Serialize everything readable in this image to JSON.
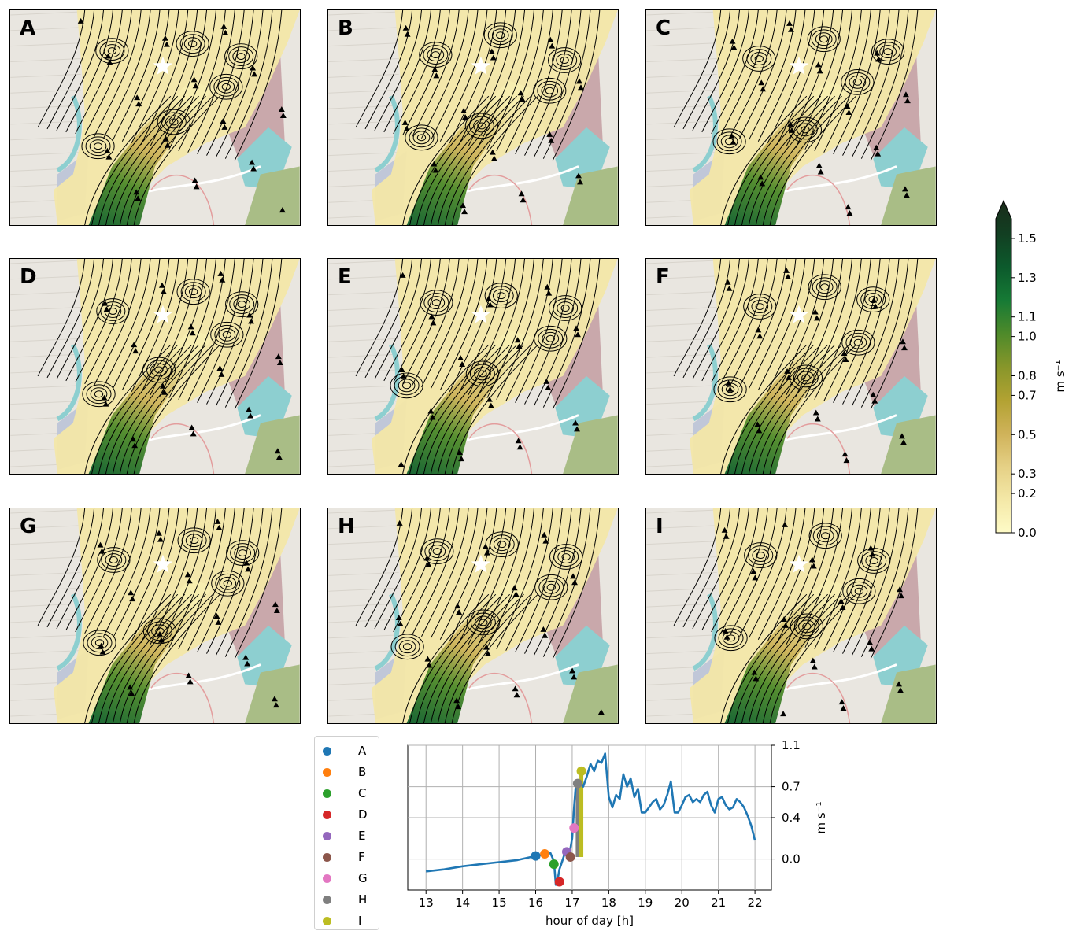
{
  "panels": [
    {
      "label": "A",
      "time": 16.0
    },
    {
      "label": "B",
      "time": 16.25
    },
    {
      "label": "C",
      "time": 16.5
    },
    {
      "label": "D",
      "time": 16.6
    },
    {
      "label": "E",
      "time": 16.8
    },
    {
      "label": "F",
      "time": 17.0
    },
    {
      "label": "G",
      "time": 17.05
    },
    {
      "label": "H",
      "time": 17.15
    },
    {
      "label": "I",
      "time": 17.25
    }
  ],
  "colorbar": {
    "label": "m s⁻¹",
    "ticks": [
      "0.0",
      "0.2",
      "0.3",
      "0.5",
      "0.7",
      "0.8",
      "1.0",
      "1.1",
      "1.3",
      "1.5"
    ],
    "range": [
      0,
      1.6
    ],
    "extend": "max",
    "colors": [
      "#fefbc7",
      "#f4e8a7",
      "#e5d085",
      "#cfb259",
      "#b2a232",
      "#87962a",
      "#4e8a2a",
      "#167a35",
      "#0c5a2c",
      "#123f22",
      "#1a2b1a"
    ]
  },
  "legend": {
    "entries": [
      {
        "label": "A",
        "color": "#1f77b4"
      },
      {
        "label": "B",
        "color": "#ff7f0e"
      },
      {
        "label": "C",
        "color": "#2ca02c"
      },
      {
        "label": "D",
        "color": "#d62728"
      },
      {
        "label": "E",
        "color": "#9467bd"
      },
      {
        "label": "F",
        "color": "#8c564b"
      },
      {
        "label": "G",
        "color": "#e377c2"
      },
      {
        "label": "H",
        "color": "#7f7f7f"
      },
      {
        "label": "I",
        "color": "#bcbd22"
      }
    ]
  },
  "chart_data": {
    "type": "line",
    "xlabel": "hour of day [h]",
    "ylabel": "m s⁻¹",
    "xlim": [
      12.5,
      22.45
    ],
    "ylim": [
      -0.3,
      1.1
    ],
    "xticks": [
      "13",
      "14",
      "15",
      "16",
      "17",
      "18",
      "19",
      "20",
      "21",
      "22"
    ],
    "yticks": [
      "1.1",
      "0.7",
      "0.4",
      "0.0"
    ],
    "ytick_values": [
      1.1,
      0.7,
      0.4,
      0.0
    ],
    "grid": true,
    "series": [
      {
        "color": "#1f77b4",
        "x": [
          13.0,
          13.5,
          14.0,
          14.5,
          15.0,
          15.5,
          16.0,
          16.2,
          16.4,
          16.5,
          16.55,
          16.6,
          16.65,
          16.7,
          16.8,
          16.9,
          17.0,
          17.05,
          17.1,
          17.15,
          17.2,
          17.3,
          17.4,
          17.5,
          17.6,
          17.7,
          17.8,
          17.9,
          18.0,
          18.1,
          18.2,
          18.3,
          18.4,
          18.5,
          18.6,
          18.7,
          18.8,
          18.9,
          19.0,
          19.1,
          19.2,
          19.3,
          19.4,
          19.5,
          19.6,
          19.7,
          19.8,
          19.9,
          20.0,
          20.1,
          20.2,
          20.3,
          20.4,
          20.5,
          20.6,
          20.7,
          20.8,
          20.9,
          21.0,
          21.1,
          21.2,
          21.3,
          21.4,
          21.5,
          21.6,
          21.7,
          21.8,
          21.9,
          22.0
        ],
        "y": [
          -0.12,
          -0.1,
          -0.07,
          -0.05,
          -0.03,
          -0.01,
          0.03,
          0.04,
          0.06,
          -0.02,
          -0.25,
          -0.2,
          -0.1,
          -0.05,
          0.06,
          0.0,
          0.2,
          0.5,
          0.72,
          0.76,
          0.75,
          0.7,
          0.8,
          0.92,
          0.85,
          0.95,
          0.93,
          1.02,
          0.6,
          0.5,
          0.62,
          0.58,
          0.82,
          0.7,
          0.78,
          0.6,
          0.68,
          0.45,
          0.45,
          0.5,
          0.55,
          0.58,
          0.48,
          0.52,
          0.62,
          0.75,
          0.45,
          0.45,
          0.52,
          0.6,
          0.62,
          0.55,
          0.58,
          0.55,
          0.62,
          0.65,
          0.52,
          0.45,
          0.58,
          0.6,
          0.52,
          0.48,
          0.5,
          0.58,
          0.55,
          0.5,
          0.42,
          0.32,
          0.18
        ]
      }
    ],
    "vertical_bars": [
      {
        "x": 17.15,
        "y0": 0.02,
        "y1": 0.72,
        "color": "#7f7f7f"
      },
      {
        "x": 17.25,
        "y0": 0.02,
        "y1": 0.85,
        "color": "#bcbd22"
      }
    ],
    "markers": [
      {
        "label": "A",
        "x": 16.0,
        "y": 0.03
      },
      {
        "label": "B",
        "x": 16.25,
        "y": 0.05
      },
      {
        "label": "C",
        "x": 16.5,
        "y": -0.05
      },
      {
        "label": "D",
        "x": 16.65,
        "y": -0.22
      },
      {
        "label": "E",
        "x": 16.85,
        "y": 0.07
      },
      {
        "label": "F",
        "x": 16.95,
        "y": 0.02
      },
      {
        "label": "G",
        "x": 17.05,
        "y": 0.3
      },
      {
        "label": "H",
        "x": 17.15,
        "y": 0.73
      },
      {
        "label": "I",
        "x": 17.25,
        "y": 0.85
      }
    ]
  }
}
